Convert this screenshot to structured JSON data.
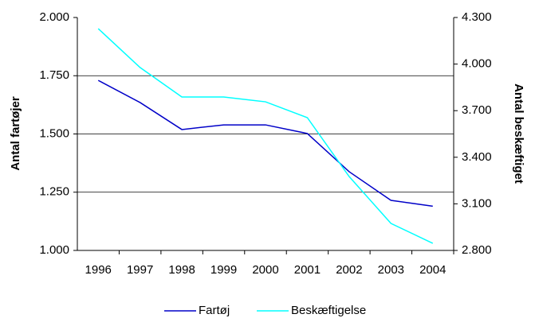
{
  "chart_data": {
    "type": "line",
    "categories": [
      "1996",
      "1997",
      "1998",
      "1999",
      "2000",
      "2001",
      "2002",
      "2003",
      "2004"
    ],
    "ylabel": "Antal fartøjer",
    "y2label": "Antal beskæftiget",
    "series": [
      {
        "name": "Fartøj",
        "color": "#0000c8",
        "values": [
          1730,
          1635,
          1519,
          1539,
          1539,
          1502,
          1338,
          1215,
          1190
        ]
      },
      {
        "name": "Beskæftigelse",
        "color": "#00ffff",
        "axis": "y2",
        "values": [
          4228,
          3978,
          3788,
          3788,
          3757,
          3655,
          3276,
          2974,
          2846
        ]
      }
    ],
    "ylim": [
      1000,
      2000
    ],
    "yticks": [
      {
        "value": 1000,
        "label": "1.000"
      },
      {
        "value": 1250,
        "label": "1.250"
      },
      {
        "value": 1500,
        "label": "1.500"
      },
      {
        "value": 1750,
        "label": "1.750"
      },
      {
        "value": 2000,
        "label": "2.000"
      }
    ],
    "y2lim": [
      2800,
      4300
    ],
    "y2ticks": [
      {
        "value": 2800,
        "label": "2.800"
      },
      {
        "value": 3100,
        "label": "3.100"
      },
      {
        "value": 3400,
        "label": "3.400"
      },
      {
        "value": 3700,
        "label": "3.700"
      },
      {
        "value": 4000,
        "label": "4.000"
      },
      {
        "value": 4300,
        "label": "4.300"
      }
    ],
    "grid": true,
    "legend": "bottom"
  }
}
